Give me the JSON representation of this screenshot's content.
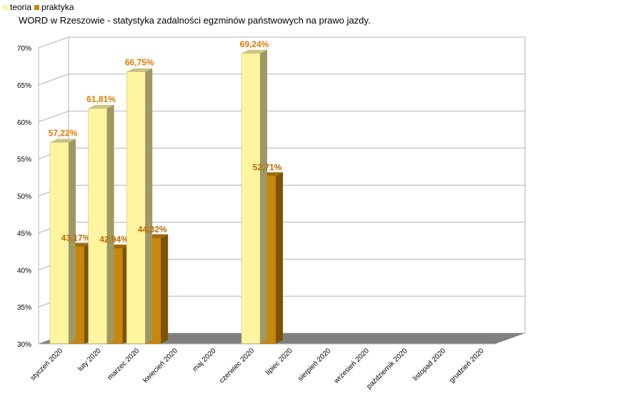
{
  "chart_data": {
    "type": "bar",
    "title": "WORD w Rzeszowie - statystyka zadalności egzminów państwowych na prawo jazdy.",
    "categories": [
      "styczeń 2020",
      "luty 2020",
      "marzec 2020",
      "kwiecień 2020",
      "maj 2020",
      "czerwiec 2020",
      "lipiec 2020",
      "sierpień 2020",
      "wrzesień 2020",
      "październik 2020",
      "listopad 2020",
      "grudzień 2020"
    ],
    "series": [
      {
        "name": "teoria",
        "color": "#fff5a0",
        "values": [
          57.22,
          61.81,
          66.75,
          null,
          null,
          69.24,
          null,
          null,
          null,
          null,
          null,
          null
        ],
        "labels": [
          "57,22%",
          "61,81%",
          "66,75%",
          "",
          "",
          "69,24%",
          "",
          "",
          "",
          "",
          "",
          ""
        ]
      },
      {
        "name": "praktyka",
        "color": "#c8860a",
        "values": [
          43.17,
          42.94,
          44.32,
          null,
          null,
          52.71,
          null,
          null,
          null,
          null,
          null,
          null
        ],
        "labels": [
          "43,17%",
          "42,94%",
          "44,32%",
          "",
          "",
          "52,71%",
          "",
          "",
          "",
          "",
          "",
          ""
        ]
      }
    ],
    "ylim": [
      30,
      70
    ],
    "yticks": [
      "30%",
      "35%",
      "40%",
      "45%",
      "50%",
      "55%",
      "60%",
      "65%",
      "70%"
    ],
    "grid": true,
    "legend": "top-left",
    "style": "3d-column",
    "data_label_color": "#e07a00"
  }
}
